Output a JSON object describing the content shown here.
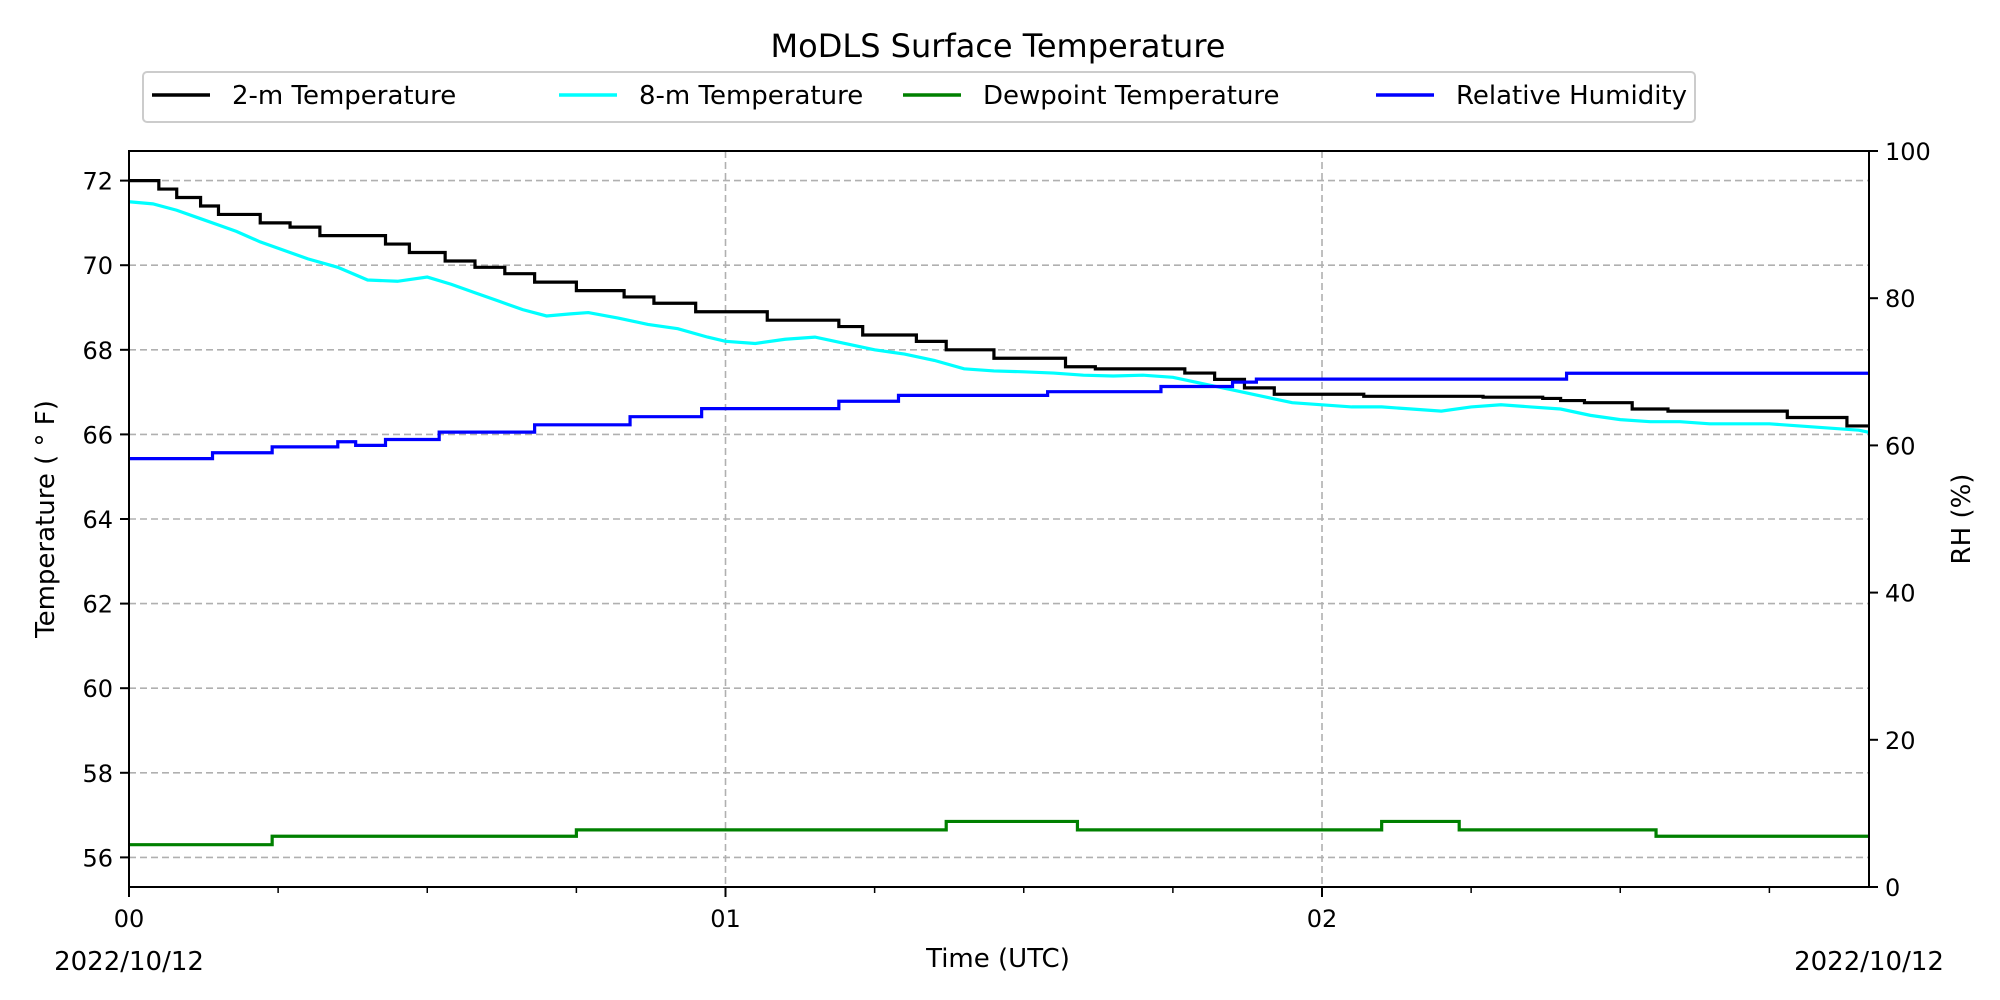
{
  "chart_data": {
    "type": "line",
    "title": "MoDLS Surface Temperature",
    "xlabel": "Time (UTC)",
    "ylabel": "Temperature ($^\\circ$F)",
    "ylabel_display": "Temperature ( ° F)",
    "y2label": "RH (%)",
    "date_left": "2022/10/12",
    "date_right": "2022/10/12",
    "x_unit": "hours UTC",
    "xlim": [
      0,
      2.917
    ],
    "ylim": [
      55.3,
      72.7
    ],
    "y2lim": [
      0,
      100
    ],
    "x_major_ticks": [
      {
        "value": 0,
        "label": "00"
      },
      {
        "value": 1,
        "label": "01"
      },
      {
        "value": 2,
        "label": "02"
      }
    ],
    "x_minor_ticks": [
      0.25,
      0.5,
      0.75,
      1.25,
      1.5,
      1.75,
      2.25,
      2.5,
      2.75
    ],
    "y_ticks": [
      56,
      58,
      60,
      62,
      64,
      66,
      68,
      70,
      72
    ],
    "y2_ticks": [
      0,
      20,
      40,
      60,
      80,
      100
    ],
    "grid": true,
    "legend_placement": "top-center, above plot",
    "series": [
      {
        "name": "2-m Temperature",
        "axis": "left",
        "color": "#000000",
        "step": true,
        "x": [
          0,
          0.05,
          0.08,
          0.12,
          0.15,
          0.22,
          0.27,
          0.32,
          0.43,
          0.47,
          0.53,
          0.58,
          0.63,
          0.68,
          0.75,
          0.83,
          0.88,
          0.95,
          1.07,
          1.19,
          1.23,
          1.32,
          1.37,
          1.45,
          1.57,
          1.62,
          1.77,
          1.82,
          1.87,
          1.92,
          2.07,
          2.27,
          2.37,
          2.4,
          2.44,
          2.52,
          2.58,
          2.65,
          2.78,
          2.88,
          2.917
        ],
        "y": [
          72.0,
          71.8,
          71.6,
          71.4,
          71.2,
          71.0,
          70.9,
          70.7,
          70.5,
          70.3,
          70.1,
          69.95,
          69.8,
          69.6,
          69.4,
          69.25,
          69.1,
          68.9,
          68.7,
          68.55,
          68.35,
          68.2,
          68.0,
          67.8,
          67.6,
          67.55,
          67.45,
          67.3,
          67.1,
          66.95,
          66.9,
          66.88,
          66.85,
          66.8,
          66.75,
          66.6,
          66.55,
          66.55,
          66.4,
          66.2,
          66.2
        ]
      },
      {
        "name": "8-m Temperature",
        "axis": "left",
        "color": "#00ffff",
        "step": false,
        "x": [
          0,
          0.04,
          0.08,
          0.12,
          0.15,
          0.18,
          0.22,
          0.26,
          0.3,
          0.35,
          0.4,
          0.45,
          0.5,
          0.54,
          0.58,
          0.62,
          0.66,
          0.7,
          0.74,
          0.77,
          0.82,
          0.87,
          0.92,
          0.97,
          1.0,
          1.05,
          1.1,
          1.15,
          1.2,
          1.25,
          1.3,
          1.35,
          1.4,
          1.45,
          1.5,
          1.55,
          1.6,
          1.65,
          1.7,
          1.75,
          1.8,
          1.85,
          1.9,
          1.95,
          2.0,
          2.05,
          2.1,
          2.15,
          2.2,
          2.25,
          2.3,
          2.35,
          2.4,
          2.45,
          2.5,
          2.55,
          2.6,
          2.65,
          2.7,
          2.75,
          2.8,
          2.85,
          2.9,
          2.917
        ],
        "y": [
          71.5,
          71.45,
          71.3,
          71.1,
          70.95,
          70.8,
          70.55,
          70.35,
          70.15,
          69.95,
          69.65,
          69.62,
          69.72,
          69.55,
          69.35,
          69.15,
          68.95,
          68.8,
          68.85,
          68.88,
          68.75,
          68.6,
          68.5,
          68.3,
          68.2,
          68.15,
          68.25,
          68.3,
          68.15,
          68.0,
          67.9,
          67.75,
          67.55,
          67.5,
          67.48,
          67.45,
          67.4,
          67.38,
          67.4,
          67.35,
          67.2,
          67.05,
          66.9,
          66.75,
          66.7,
          66.65,
          66.65,
          66.6,
          66.55,
          66.65,
          66.7,
          66.65,
          66.6,
          66.45,
          66.35,
          66.3,
          66.3,
          66.25,
          66.25,
          66.25,
          66.2,
          66.15,
          66.1,
          66.05
        ]
      },
      {
        "name": "Dewpoint Temperature",
        "axis": "left",
        "color": "#008000",
        "step": true,
        "x": [
          0,
          0.24,
          0.48,
          0.75,
          1.2,
          1.37,
          1.59,
          2.0,
          2.1,
          2.23,
          2.56,
          2.917
        ],
        "y": [
          56.3,
          56.5,
          56.5,
          56.65,
          56.65,
          56.85,
          56.65,
          56.65,
          56.85,
          56.65,
          56.5,
          56.5
        ]
      },
      {
        "name": "Relative Humidity",
        "axis": "right",
        "color": "#0000ff",
        "step": true,
        "x": [
          0,
          0.07,
          0.14,
          0.24,
          0.35,
          0.38,
          0.43,
          0.52,
          0.68,
          0.84,
          0.96,
          1.19,
          1.29,
          1.54,
          1.73,
          1.85,
          1.89,
          2.03,
          2.41,
          2.917
        ],
        "y": [
          58.2,
          58.2,
          59.0,
          59.8,
          60.5,
          60.0,
          60.8,
          61.8,
          62.8,
          63.9,
          65.0,
          66.0,
          66.8,
          67.3,
          68.0,
          68.6,
          69.0,
          69.0,
          69.8,
          69.8
        ]
      }
    ]
  }
}
